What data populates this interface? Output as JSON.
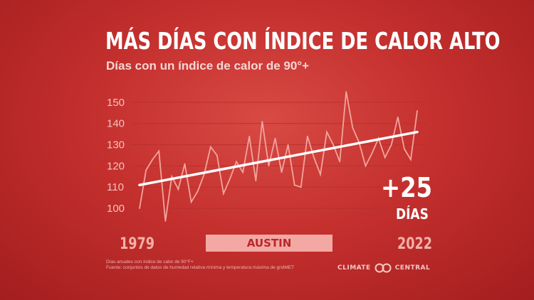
{
  "title": "MÁS DÍAS CON ÍNDICE DE CALOR ALTO",
  "subtitle": "Días con un índice de calor de 90°+",
  "location": "AUSTIN",
  "year_start": "1979",
  "year_end": "2022",
  "delta": "+25",
  "delta_unit": "DÍAS",
  "footnote_line1": "Días anuales con índice de calor de 90°F+",
  "footnote_line2": "Fuente: conjuntos de datos de humedad relativa mínima y temperatura máxima de gridMET",
  "logo_left": "CLIMATE",
  "logo_right": "CENTRAL",
  "chart_data": {
    "type": "line",
    "title": "MÁS DÍAS CON ÍNDICE DE CALOR ALTO",
    "subtitle": "Días con un índice de calor de 90°+",
    "ylim": [
      95,
      156
    ],
    "yticks": [
      100,
      110,
      120,
      130,
      140,
      150
    ],
    "grid": true,
    "x": [
      1979,
      1980,
      1981,
      1982,
      1983,
      1984,
      1985,
      1986,
      1987,
      1988,
      1989,
      1990,
      1991,
      1992,
      1993,
      1994,
      1995,
      1996,
      1997,
      1998,
      1999,
      2000,
      2001,
      2002,
      2003,
      2004,
      2005,
      2006,
      2007,
      2008,
      2009,
      2010,
      2011,
      2012,
      2013,
      2014,
      2015,
      2016,
      2017,
      2018,
      2019,
      2020,
      2021,
      2022
    ],
    "series": [
      {
        "values": [
          100,
          118,
          123,
          127,
          94,
          115,
          109,
          121,
          103,
          108,
          116,
          129,
          125,
          107,
          114,
          122,
          117,
          134,
          113,
          141,
          120,
          133,
          117,
          130,
          111,
          110,
          134,
          124,
          116,
          136,
          130,
          122,
          155,
          138,
          131,
          120,
          126,
          133,
          124,
          130,
          143,
          128,
          123,
          146
        ]
      }
    ],
    "trend": {
      "start": 111,
      "end": 136
    },
    "colors": {
      "series": "#f3a49e",
      "trend": "#ffffff",
      "grid": "#b8302f"
    }
  }
}
